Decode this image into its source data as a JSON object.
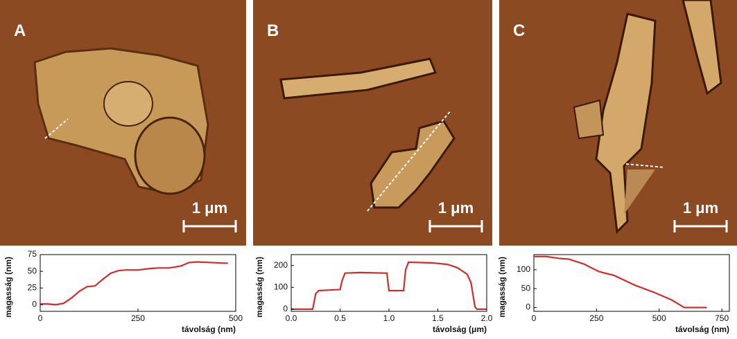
{
  "panels": [
    {
      "label": "A",
      "scale": "1 μm"
    },
    {
      "label": "B",
      "scale": "1 μm"
    },
    {
      "label": "C",
      "scale": "1 μm"
    }
  ],
  "chart_data": [
    {
      "type": "line",
      "ylabel": "magasság (nm)",
      "xlabel": "távolság (nm)",
      "color": "#d42a2a",
      "x": [
        0,
        20,
        40,
        60,
        80,
        100,
        120,
        140,
        160,
        180,
        200,
        220,
        250,
        280,
        300,
        330,
        360,
        380,
        400,
        440,
        480
      ],
      "values": [
        1,
        1,
        0,
        2,
        10,
        20,
        27,
        28,
        38,
        47,
        51,
        52,
        52,
        54,
        55,
        55,
        58,
        63,
        64,
        63,
        62
      ],
      "xlim": [
        0,
        500
      ],
      "xticks": [
        0,
        250,
        500
      ],
      "ylim": [
        -10,
        75
      ],
      "yticks": [
        0,
        25,
        50,
        75
      ]
    },
    {
      "type": "line",
      "ylabel": "magasság (nm)",
      "xlabel": "távolság (μm)",
      "color": "#d42a2a",
      "x": [
        0,
        0.22,
        0.25,
        0.28,
        0.5,
        0.52,
        0.55,
        0.7,
        0.98,
        0.99,
        1.0,
        1.15,
        1.17,
        1.2,
        1.45,
        1.6,
        1.7,
        1.8,
        1.84,
        1.88,
        1.9,
        2.0
      ],
      "values": [
        0,
        0,
        70,
        85,
        90,
        130,
        165,
        168,
        165,
        120,
        85,
        85,
        180,
        215,
        212,
        205,
        190,
        160,
        120,
        10,
        0,
        0
      ],
      "xlim": [
        0,
        2.0
      ],
      "xticks": [
        {
          "value": 0,
          "label": "0.0"
        },
        0.5,
        {
          "value": 1,
          "label": "1.0"
        },
        1.5,
        {
          "value": 2,
          "label": "2.0"
        }
      ],
      "ylim": [
        -10,
        250
      ],
      "yticks": [
        0,
        100,
        200
      ]
    },
    {
      "type": "line",
      "ylabel": "magasság (nm)",
      "xlabel": "távolság (nm)",
      "color": "#d42a2a",
      "x": [
        0,
        50,
        100,
        140,
        200,
        260,
        320,
        400,
        480,
        550,
        600,
        690
      ],
      "values": [
        135,
        135,
        130,
        128,
        115,
        95,
        85,
        60,
        40,
        20,
        0,
        0
      ],
      "xlim": [
        0,
        780
      ],
      "xticks": [
        0,
        250,
        500,
        750
      ],
      "ylim": [
        -10,
        140
      ],
      "yticks": [
        0,
        50,
        100
      ]
    }
  ]
}
